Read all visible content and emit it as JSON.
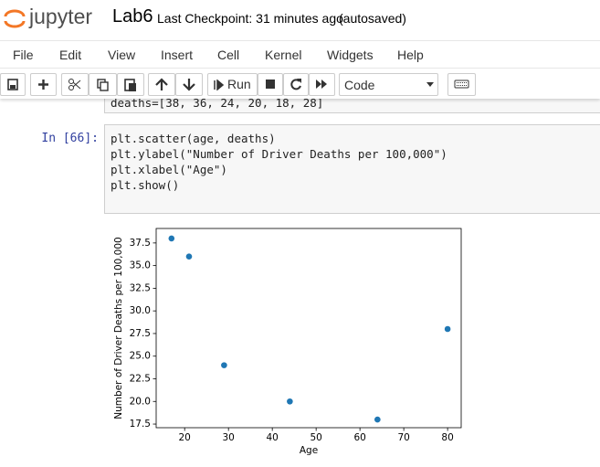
{
  "header": {
    "logo": "jupyter",
    "notebook_name": "Lab6",
    "checkpoint": "Last Checkpoint: 31 minutes ago",
    "autosave": "(autosaved)"
  },
  "menu": [
    "File",
    "Edit",
    "View",
    "Insert",
    "Cell",
    "Kernel",
    "Widgets",
    "Help"
  ],
  "toolbar": {
    "run": "Run",
    "cell_type": "Code"
  },
  "cells": [
    {
      "code": [
        "deaths=[38, 36, 24, 20, 18, 28]"
      ]
    },
    {
      "prompt": "In [66]:",
      "code": [
        "plt.scatter(age, deaths)",
        "plt.ylabel(\"Number of Driver Deaths per 100,000\")",
        "plt.xlabel(\"Age\")",
        "plt.show()"
      ]
    }
  ],
  "chart_data": {
    "type": "scatter",
    "x": [
      17,
      21,
      29,
      44,
      64,
      80
    ],
    "series": [
      {
        "color": "#1f77b4",
        "values": [
          38,
          36,
          24,
          20,
          18,
          28
        ]
      }
    ],
    "xlabel": "Age",
    "ylabel": "Number of Driver Deaths per 100,000",
    "xlim": [
      13.5,
      83.1
    ],
    "ylim": [
      17.1,
      39.1
    ],
    "xticks": [
      20,
      30,
      40,
      50,
      60,
      70,
      80
    ],
    "yticks": [
      17.5,
      {
        "value": 20,
        "label": "20.0"
      },
      22.5,
      {
        "value": 25,
        "label": "25.0"
      },
      27.5,
      {
        "value": 30,
        "label": "30.0"
      },
      32.5,
      {
        "value": 35,
        "label": "35.0"
      },
      37.5
    ]
  }
}
